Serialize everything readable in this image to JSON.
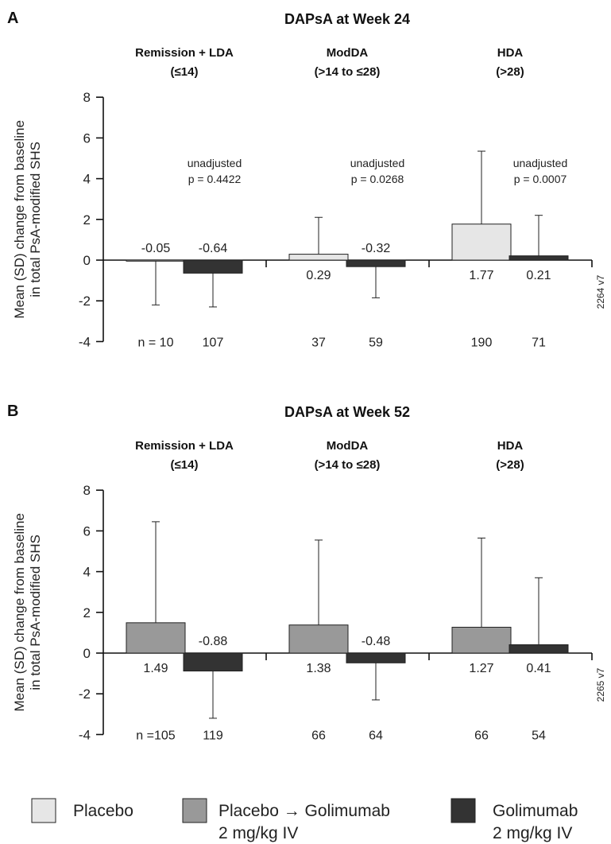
{
  "colors": {
    "placebo": "#e6e6e6",
    "placebo_golimumab": "#999999",
    "golimumab": "#333333"
  },
  "legend": [
    {
      "key": "placebo",
      "line1": "Placebo",
      "line2": ""
    },
    {
      "key": "placebo_golimumab",
      "line1": "Placebo → Golimumab",
      "line2": "2 mg/kg IV"
    },
    {
      "key": "golimumab",
      "line1": "Golimumab",
      "line2": "2 mg/kg IV"
    }
  ],
  "chart_data": [
    {
      "panel": "A",
      "type": "bar",
      "title": "DAPsA at Week 24",
      "ylabel_line1": "Mean (SD) change from baseline",
      "ylabel_line2": "in total PsA-modified SHS",
      "ylim": [
        -4,
        8
      ],
      "yticks": [
        -4,
        -2,
        0,
        2,
        4,
        6,
        8
      ],
      "code": "2264 v7",
      "groups": [
        {
          "line1": "Remission + LDA",
          "line2": "(≤14)",
          "p_line1": "unadjusted",
          "p_line2": "p = 0.4422",
          "bars": [
            {
              "series": "placebo",
              "value": -0.05,
              "sd_end": -2.2,
              "label": "-0.05",
              "n": "n = 10"
            },
            {
              "series": "golimumab",
              "value": -0.64,
              "sd_end": -2.3,
              "label": "-0.64",
              "n": "107"
            }
          ]
        },
        {
          "line1": "ModDA",
          "line2": "(>14 to ≤28)",
          "p_line1": "unadjusted",
          "p_line2": "p = 0.0268",
          "bars": [
            {
              "series": "placebo",
              "value": 0.29,
              "sd_end": 2.1,
              "label": "0.29",
              "n": "37"
            },
            {
              "series": "golimumab",
              "value": -0.32,
              "sd_end": -1.85,
              "label": "-0.32",
              "n": "59"
            }
          ]
        },
        {
          "line1": "HDA",
          "line2": "(>28)",
          "p_line1": "unadjusted",
          "p_line2": "p = 0.0007",
          "bars": [
            {
              "series": "placebo",
              "value": 1.77,
              "sd_end": 5.35,
              "label": "1.77",
              "n": "190"
            },
            {
              "series": "golimumab",
              "value": 0.21,
              "sd_end": 2.2,
              "label": "0.21",
              "n": "71"
            }
          ]
        }
      ]
    },
    {
      "panel": "B",
      "type": "bar",
      "title": "DAPsA at Week 52",
      "ylabel_line1": "Mean (SD) change from baseline",
      "ylabel_line2": "in total PsA-modified SHS",
      "ylim": [
        -4,
        8
      ],
      "yticks": [
        -4,
        -2,
        0,
        2,
        4,
        6,
        8
      ],
      "code": "2265 v7",
      "groups": [
        {
          "line1": "Remission + LDA",
          "line2": "(≤14)",
          "p_line1": "",
          "p_line2": "",
          "bars": [
            {
              "series": "placebo_golimumab",
              "value": 1.49,
              "sd_end": 6.45,
              "label": "1.49",
              "n": "n =105"
            },
            {
              "series": "golimumab",
              "value": -0.88,
              "sd_end": -3.2,
              "label": "-0.88",
              "n": "119"
            }
          ]
        },
        {
          "line1": "ModDA",
          "line2": "(>14 to ≤28)",
          "p_line1": "",
          "p_line2": "",
          "bars": [
            {
              "series": "placebo_golimumab",
              "value": 1.38,
              "sd_end": 5.55,
              "label": "1.38",
              "n": "66"
            },
            {
              "series": "golimumab",
              "value": -0.48,
              "sd_end": -2.3,
              "label": "-0.48",
              "n": "64"
            }
          ]
        },
        {
          "line1": "HDA",
          "line2": "(>28)",
          "p_line1": "",
          "p_line2": "",
          "bars": [
            {
              "series": "placebo_golimumab",
              "value": 1.27,
              "sd_end": 5.65,
              "label": "1.27",
              "n": "66"
            },
            {
              "series": "golimumab",
              "value": 0.41,
              "sd_end": 3.7,
              "label": "0.41",
              "n": "54"
            }
          ]
        }
      ]
    }
  ]
}
